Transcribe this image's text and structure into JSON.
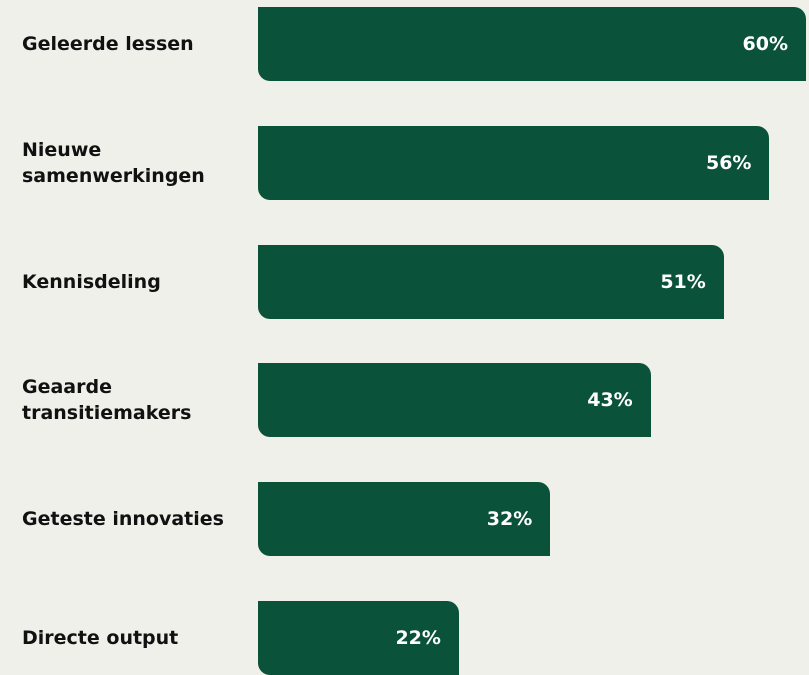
{
  "chart_data": {
    "type": "hbar",
    "categories": [
      "Geleerde lessen",
      "Nieuwe samenwerkingen",
      "Kennisdeling",
      "Geaarde transitiemakers",
      "Geteste innovaties",
      "Directe output"
    ],
    "values": [
      60,
      56,
      51,
      43,
      32,
      22
    ],
    "value_labels": [
      "60%",
      "56%",
      "51%",
      "43%",
      "32%",
      "22%"
    ],
    "color": "#0b523a"
  }
}
